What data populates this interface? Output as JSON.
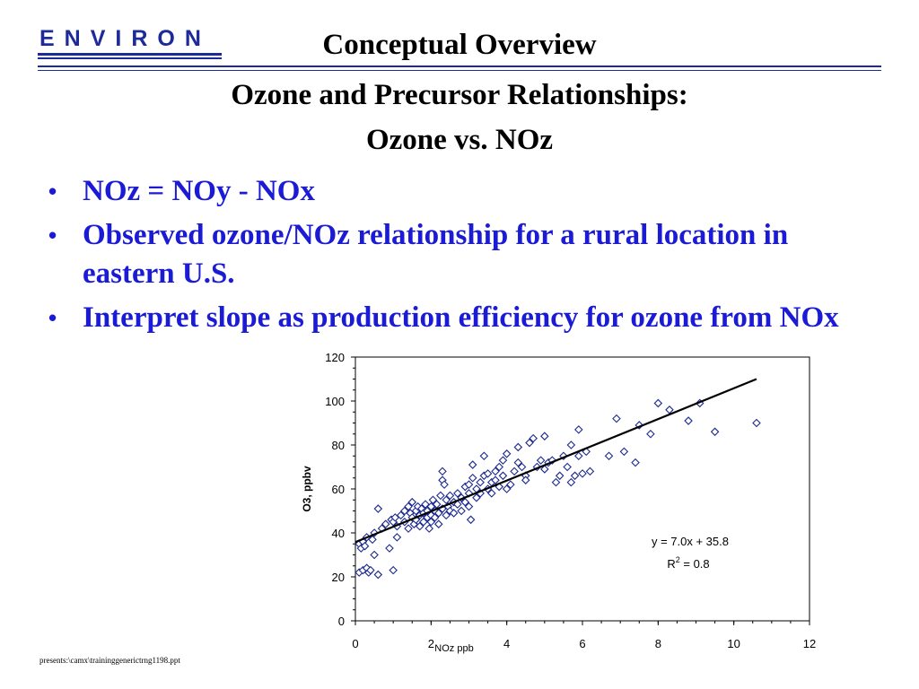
{
  "header": {
    "logo_text": "ENVIRON",
    "title_line1": "Conceptual Overview",
    "title_line2": "Ozone and Precursor Relationships:",
    "title_line3": "Ozone vs. NOz"
  },
  "bullets": [
    {
      "text": "NOz = NOy - NOx"
    },
    {
      "text": "Observed ozone/NOz relationship for a rural location in eastern U.S."
    },
    {
      "text": "Interpret slope as production efficiency for ozone from NOx"
    }
  ],
  "bullet_symbol": "•",
  "footer": {
    "path": "presents:\\camx\\traininggenerictrng1198.ppt"
  },
  "colors": {
    "logo": "#1d2a9a",
    "bullet_text": "#1b1bd6",
    "markers": "#1c2a8f",
    "trend_line": "#000000"
  },
  "chart_data": {
    "type": "scatter",
    "xlabel": "NOz  ppb",
    "ylabel": "O3,  ppbv",
    "xlim": [
      0,
      12
    ],
    "ylim": [
      0,
      120
    ],
    "xticks": [
      0,
      2,
      4,
      6,
      8,
      10,
      12
    ],
    "yticks": [
      0,
      20,
      40,
      60,
      80,
      100,
      120
    ],
    "marker": "open-diamond",
    "grid": false,
    "points": [
      [
        0.1,
        35
      ],
      [
        0.15,
        33
      ],
      [
        0.2,
        36
      ],
      [
        0.25,
        34
      ],
      [
        0.3,
        38
      ],
      [
        0.1,
        22
      ],
      [
        0.2,
        23
      ],
      [
        0.3,
        24
      ],
      [
        0.35,
        22
      ],
      [
        0.4,
        23
      ],
      [
        0.45,
        37
      ],
      [
        0.5,
        40
      ],
      [
        0.5,
        30
      ],
      [
        0.6,
        21
      ],
      [
        0.6,
        51
      ],
      [
        0.7,
        42
      ],
      [
        0.8,
        44
      ],
      [
        0.9,
        33
      ],
      [
        0.95,
        46
      ],
      [
        1.0,
        23
      ],
      [
        1.0,
        45
      ],
      [
        1.05,
        47
      ],
      [
        1.1,
        43
      ],
      [
        1.1,
        38
      ],
      [
        1.2,
        48
      ],
      [
        1.3,
        45
      ],
      [
        1.3,
        50
      ],
      [
        1.4,
        42
      ],
      [
        1.4,
        52
      ],
      [
        1.45,
        49
      ],
      [
        1.5,
        47
      ],
      [
        1.5,
        54
      ],
      [
        1.55,
        44
      ],
      [
        1.6,
        50
      ],
      [
        1.6,
        46
      ],
      [
        1.65,
        52
      ],
      [
        1.7,
        48
      ],
      [
        1.7,
        43
      ],
      [
        1.75,
        51
      ],
      [
        1.8,
        45
      ],
      [
        1.8,
        49
      ],
      [
        1.85,
        53
      ],
      [
        1.9,
        47
      ],
      [
        1.9,
        50
      ],
      [
        1.95,
        42
      ],
      [
        2.0,
        52
      ],
      [
        2.0,
        48
      ],
      [
        2.0,
        45
      ],
      [
        2.05,
        55
      ],
      [
        2.1,
        50
      ],
      [
        2.1,
        47
      ],
      [
        2.15,
        53
      ],
      [
        2.2,
        49
      ],
      [
        2.2,
        44
      ],
      [
        2.25,
        57
      ],
      [
        2.3,
        51
      ],
      [
        2.3,
        64
      ],
      [
        2.3,
        68
      ],
      [
        2.35,
        62
      ],
      [
        2.4,
        55
      ],
      [
        2.4,
        48
      ],
      [
        2.45,
        52
      ],
      [
        2.5,
        50
      ],
      [
        2.5,
        57
      ],
      [
        2.6,
        54
      ],
      [
        2.6,
        49
      ],
      [
        2.7,
        53
      ],
      [
        2.7,
        58
      ],
      [
        2.8,
        50
      ],
      [
        2.8,
        56
      ],
      [
        2.9,
        61
      ],
      [
        2.9,
        54
      ],
      [
        3.0,
        58
      ],
      [
        3.0,
        62
      ],
      [
        3.0,
        52
      ],
      [
        3.05,
        46
      ],
      [
        3.1,
        71
      ],
      [
        3.1,
        65
      ],
      [
        3.2,
        60
      ],
      [
        3.2,
        56
      ],
      [
        3.3,
        58
      ],
      [
        3.3,
        63
      ],
      [
        3.4,
        66
      ],
      [
        3.4,
        75
      ],
      [
        3.5,
        60
      ],
      [
        3.5,
        67
      ],
      [
        3.6,
        63
      ],
      [
        3.6,
        58
      ],
      [
        3.7,
        68
      ],
      [
        3.7,
        64
      ],
      [
        3.8,
        61
      ],
      [
        3.8,
        70
      ],
      [
        3.9,
        66
      ],
      [
        3.9,
        73
      ],
      [
        4.0,
        76
      ],
      [
        4.0,
        60
      ],
      [
        4.1,
        62
      ],
      [
        4.2,
        68
      ],
      [
        4.3,
        72
      ],
      [
        4.3,
        79
      ],
      [
        4.4,
        70
      ],
      [
        4.5,
        66
      ],
      [
        4.5,
        64
      ],
      [
        4.6,
        81
      ],
      [
        4.7,
        83
      ],
      [
        4.8,
        70
      ],
      [
        4.9,
        73
      ],
      [
        5.0,
        84
      ],
      [
        5.0,
        69
      ],
      [
        5.1,
        72
      ],
      [
        5.2,
        73
      ],
      [
        5.3,
        63
      ],
      [
        5.4,
        66
      ],
      [
        5.5,
        75
      ],
      [
        5.6,
        70
      ],
      [
        5.7,
        80
      ],
      [
        5.7,
        63
      ],
      [
        5.8,
        66
      ],
      [
        5.9,
        75
      ],
      [
        5.9,
        87
      ],
      [
        6.0,
        67
      ],
      [
        6.1,
        77
      ],
      [
        6.2,
        68
      ],
      [
        6.7,
        75
      ],
      [
        6.9,
        92
      ],
      [
        7.1,
        77
      ],
      [
        7.4,
        72
      ],
      [
        7.5,
        89
      ],
      [
        7.8,
        85
      ],
      [
        8.0,
        99
      ],
      [
        8.3,
        96
      ],
      [
        8.8,
        91
      ],
      [
        9.1,
        99
      ],
      [
        9.5,
        86
      ],
      [
        10.6,
        90
      ]
    ],
    "trendline": {
      "slope": 7.0,
      "intercept": 35.8,
      "x_range": [
        0,
        10.6
      ]
    },
    "annotation": {
      "equation": "y = 7.0x + 35.8",
      "r2_prefix": "R",
      "r2_sup": "2",
      "r2_suffix": " = 0.8"
    }
  }
}
